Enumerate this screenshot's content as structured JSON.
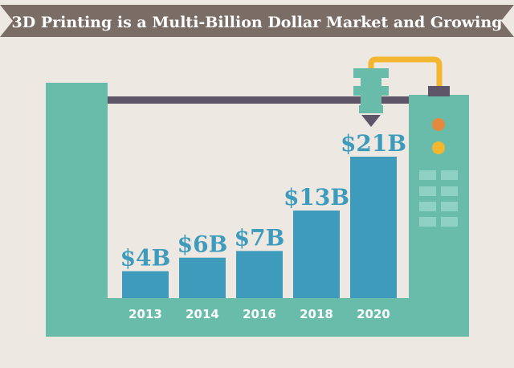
{
  "title": "3D Printing is a Multi-Billion Dollar Market and Growing",
  "colors": {
    "background": "#ede8e2",
    "banner": "#7a6d66",
    "frame": "#69bcaa",
    "bar": "#3f9bbb",
    "rail": "#5e5568",
    "filament": "#f2b630",
    "orange_dot": "#e38a3e",
    "yellow_dot": "#f2b630",
    "button": "#8fd2c3"
  },
  "icons": [
    "3d-printer-frame",
    "printer-nozzle-icon",
    "filament-tube-icon",
    "control-panel"
  ],
  "chart_data": {
    "type": "bar",
    "title": "3D Printing is a Multi-Billion Dollar Market and Growing",
    "categories": [
      "2013",
      "2014",
      "2016",
      "2018",
      "2020"
    ],
    "values": [
      4,
      6,
      7,
      13,
      21
    ],
    "labels": [
      "$4B",
      "$6B",
      "$7B",
      "$13B",
      "$21B"
    ],
    "unit": "USD billions",
    "ylim": [
      0,
      21
    ],
    "xlabel": "",
    "ylabel": "",
    "grid": false,
    "legend": "none"
  }
}
